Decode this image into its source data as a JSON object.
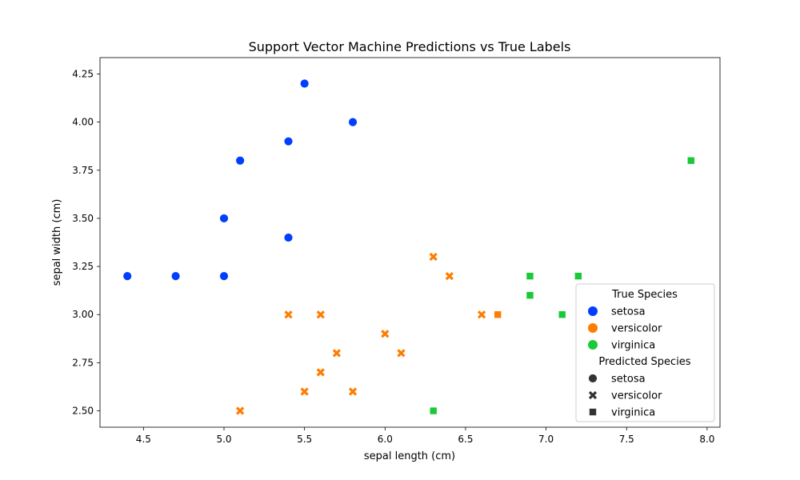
{
  "chart_data": {
    "type": "scatter",
    "title": "Support Vector Machine Predictions vs True Labels",
    "xlabel": "sepal length (cm)",
    "ylabel": "sepal width (cm)",
    "xlim": [
      4.23,
      8.08
    ],
    "ylim": [
      2.415,
      4.335
    ],
    "xticks": [
      "4.5",
      "5.0",
      "5.5",
      "6.0",
      "6.5",
      "7.0",
      "7.5",
      "8.0"
    ],
    "yticks": [
      "2.50",
      "2.75",
      "3.00",
      "3.25",
      "3.50",
      "3.75",
      "4.00",
      "4.25"
    ],
    "grid": false,
    "legend_placement": "lower-right",
    "colors": {
      "setosa": "#023eff",
      "versicolor": "#ff7c00",
      "virginica": "#1ac938"
    },
    "legend": {
      "hue_title": "True Species",
      "hue_entries": [
        "setosa",
        "versicolor",
        "virginica"
      ],
      "style_title": "Predicted Species",
      "style_entries": [
        "setosa",
        "versicolor",
        "virginica"
      ]
    },
    "points": [
      {
        "x": 4.4,
        "y": 3.2,
        "true": "setosa",
        "pred": "setosa"
      },
      {
        "x": 4.7,
        "y": 3.2,
        "true": "setosa",
        "pred": "setosa"
      },
      {
        "x": 5.0,
        "y": 3.2,
        "true": "setosa",
        "pred": "setosa"
      },
      {
        "x": 5.0,
        "y": 3.5,
        "true": "setosa",
        "pred": "setosa"
      },
      {
        "x": 5.1,
        "y": 3.8,
        "true": "setosa",
        "pred": "setosa"
      },
      {
        "x": 5.4,
        "y": 3.9,
        "true": "setosa",
        "pred": "setosa"
      },
      {
        "x": 5.4,
        "y": 3.4,
        "true": "setosa",
        "pred": "setosa"
      },
      {
        "x": 5.5,
        "y": 4.2,
        "true": "setosa",
        "pred": "setosa"
      },
      {
        "x": 5.8,
        "y": 4.0,
        "true": "setosa",
        "pred": "setosa"
      },
      {
        "x": 5.1,
        "y": 2.5,
        "true": "versicolor",
        "pred": "versicolor"
      },
      {
        "x": 5.4,
        "y": 3.0,
        "true": "versicolor",
        "pred": "versicolor"
      },
      {
        "x": 5.5,
        "y": 2.6,
        "true": "versicolor",
        "pred": "versicolor"
      },
      {
        "x": 5.6,
        "y": 3.0,
        "true": "versicolor",
        "pred": "versicolor"
      },
      {
        "x": 5.6,
        "y": 2.7,
        "true": "versicolor",
        "pred": "versicolor"
      },
      {
        "x": 5.7,
        "y": 2.8,
        "true": "versicolor",
        "pred": "versicolor"
      },
      {
        "x": 5.8,
        "y": 2.6,
        "true": "versicolor",
        "pred": "versicolor"
      },
      {
        "x": 6.0,
        "y": 2.9,
        "true": "versicolor",
        "pred": "versicolor"
      },
      {
        "x": 6.1,
        "y": 2.8,
        "true": "versicolor",
        "pred": "versicolor"
      },
      {
        "x": 6.3,
        "y": 3.3,
        "true": "versicolor",
        "pred": "versicolor"
      },
      {
        "x": 6.4,
        "y": 3.2,
        "true": "versicolor",
        "pred": "versicolor"
      },
      {
        "x": 6.6,
        "y": 3.0,
        "true": "versicolor",
        "pred": "versicolor"
      },
      {
        "x": 6.7,
        "y": 3.0,
        "true": "versicolor",
        "pred": "virginica"
      },
      {
        "x": 6.3,
        "y": 2.5,
        "true": "virginica",
        "pred": "virginica"
      },
      {
        "x": 6.9,
        "y": 3.2,
        "true": "virginica",
        "pred": "virginica"
      },
      {
        "x": 6.9,
        "y": 3.1,
        "true": "virginica",
        "pred": "virginica"
      },
      {
        "x": 7.1,
        "y": 3.0,
        "true": "virginica",
        "pred": "virginica"
      },
      {
        "x": 7.2,
        "y": 3.2,
        "true": "virginica",
        "pred": "virginica"
      },
      {
        "x": 7.9,
        "y": 3.8,
        "true": "virginica",
        "pred": "virginica"
      }
    ]
  }
}
